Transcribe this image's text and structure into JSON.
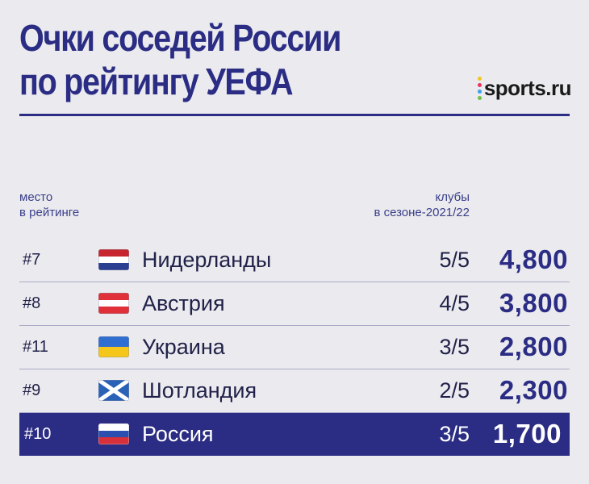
{
  "title": {
    "line1": "Очки соседей России",
    "line2": "по рейтингу УЕФА"
  },
  "logo": {
    "text": "sports.ru",
    "dot_colors": [
      "#f2c71b",
      "#e8365f",
      "#3aa0e8",
      "#6ec34a"
    ]
  },
  "columns": {
    "place_line1": "место",
    "place_line2": "в рейтинге",
    "clubs_line1": "клубы",
    "clubs_line2": "в сезоне-2021/22"
  },
  "accent_color": "#2b2d84",
  "rows": [
    {
      "rank": "#7",
      "country": "Нидерланды",
      "flag": "netherlands-flag-icon",
      "clubs": "5/5",
      "points": "4,800"
    },
    {
      "rank": "#8",
      "country": "Австрия",
      "flag": "austria-flag-icon",
      "clubs": "4/5",
      "points": "3,800"
    },
    {
      "rank": "#11",
      "country": "Украина",
      "flag": "ukraine-flag-icon",
      "clubs": "3/5",
      "points": "2,800"
    },
    {
      "rank": "#9",
      "country": "Шотландия",
      "flag": "scotland-flag-icon",
      "clubs": "2/5",
      "points": "2,300"
    },
    {
      "rank": "#10",
      "country": "Россия",
      "flag": "russia-flag-icon",
      "clubs": "3/5",
      "points": "1,700",
      "highlighted": true
    }
  ]
}
